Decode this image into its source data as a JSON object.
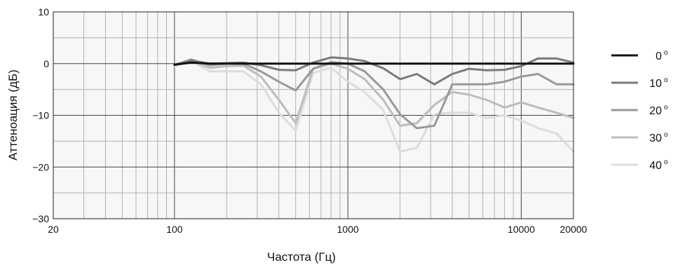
{
  "chart_data": {
    "type": "line",
    "xlabel": "Частота (Гц)",
    "ylabel": "Аттеноация (дБ)",
    "xscale": "log",
    "xlim": [
      20,
      20000
    ],
    "ylim": [
      -30,
      10
    ],
    "x_ticks": [
      {
        "value": 20,
        "label": "20"
      },
      {
        "value": 100,
        "label": "100"
      },
      {
        "value": 1000,
        "label": "1000"
      },
      {
        "value": 10000,
        "label": "10000"
      },
      {
        "value": 20000,
        "label": "20000"
      }
    ],
    "y_ticks": [
      {
        "value": 10,
        "label": "10"
      },
      {
        "value": 0,
        "label": "0"
      },
      {
        "value": -10,
        "label": "−10"
      },
      {
        "value": -20,
        "label": "−20"
      },
      {
        "value": -30,
        "label": "−30"
      }
    ],
    "grid": true,
    "legend_position": "right",
    "series": [
      {
        "name": "0",
        "color": "#111111",
        "x": [
          100,
          125,
          160,
          200,
          250,
          315,
          400,
          500,
          630,
          800,
          1000,
          1250,
          1600,
          2000,
          2500,
          3150,
          4000,
          5000,
          6300,
          8000,
          10000,
          12500,
          16000,
          20000
        ],
        "y": [
          -0.2,
          0.2,
          0,
          0,
          0,
          0,
          0,
          0,
          0,
          0,
          0,
          0,
          0,
          0,
          0,
          0,
          0,
          0,
          0,
          0,
          0,
          0,
          0,
          0
        ]
      },
      {
        "name": "10",
        "color": "#7a7a7a",
        "x": [
          100,
          125,
          160,
          200,
          250,
          315,
          400,
          500,
          630,
          800,
          1000,
          1250,
          1600,
          2000,
          2500,
          3150,
          4000,
          5000,
          6300,
          8000,
          10000,
          12500,
          16000,
          20000
        ],
        "y": [
          -0.2,
          0.6,
          0,
          0.1,
          0.2,
          -0.3,
          -1.2,
          -1.3,
          0.2,
          1.2,
          1.0,
          0.5,
          -0.9,
          -3.0,
          -2.0,
          -4.0,
          -2.0,
          -1.0,
          -1.3,
          -1.2,
          -0.5,
          1.0,
          1.0,
          0.2
        ]
      },
      {
        "name": "20",
        "color": "#999999",
        "x": [
          100,
          125,
          160,
          200,
          250,
          315,
          400,
          500,
          630,
          800,
          1000,
          1250,
          1600,
          2000,
          2500,
          3150,
          4000,
          5000,
          6300,
          8000,
          10000,
          12500,
          16000,
          20000
        ],
        "y": [
          -0.3,
          0.8,
          -0.3,
          0,
          0,
          -1.5,
          -3.5,
          -5.2,
          -1.0,
          0.3,
          0,
          -1.5,
          -5.0,
          -9.8,
          -12.5,
          -12.0,
          -4.0,
          -4.0,
          -4.0,
          -3.5,
          -2.5,
          -2.0,
          -4.0,
          -4.0
        ]
      },
      {
        "name": "30",
        "color": "#bcbcbc",
        "x": [
          100,
          125,
          160,
          200,
          250,
          315,
          400,
          500,
          630,
          800,
          1000,
          1250,
          1600,
          2000,
          2500,
          3150,
          4000,
          5000,
          6300,
          8000,
          10000,
          12500,
          16000,
          20000
        ],
        "y": [
          -0.3,
          0.6,
          -0.8,
          -0.5,
          -0.4,
          -2.5,
          -7.0,
          -11.5,
          -1.0,
          0,
          -1.0,
          -3.0,
          -7.0,
          -12.0,
          -11.5,
          -8.0,
          -5.5,
          -6.0,
          -7.0,
          -8.5,
          -7.5,
          -8.5,
          -9.5,
          -10.5
        ]
      },
      {
        "name": "40",
        "color": "#dcdcdc",
        "x": [
          100,
          125,
          160,
          200,
          250,
          315,
          400,
          500,
          630,
          800,
          1000,
          1250,
          1600,
          2000,
          2500,
          3150,
          4000,
          5000,
          6300,
          8000,
          10000,
          12500,
          16000,
          20000
        ],
        "y": [
          -0.5,
          0.5,
          -1.5,
          -1.5,
          -1.5,
          -4.0,
          -9.5,
          -13.0,
          -1.8,
          -0.8,
          -3.5,
          -5.5,
          -9.0,
          -17.0,
          -16.3,
          -9.8,
          -9.5,
          -9.5,
          -10.5,
          -10.0,
          -11.0,
          -12.5,
          -13.5,
          -17.0
        ]
      }
    ],
    "legend_degree_symbol": "o"
  }
}
